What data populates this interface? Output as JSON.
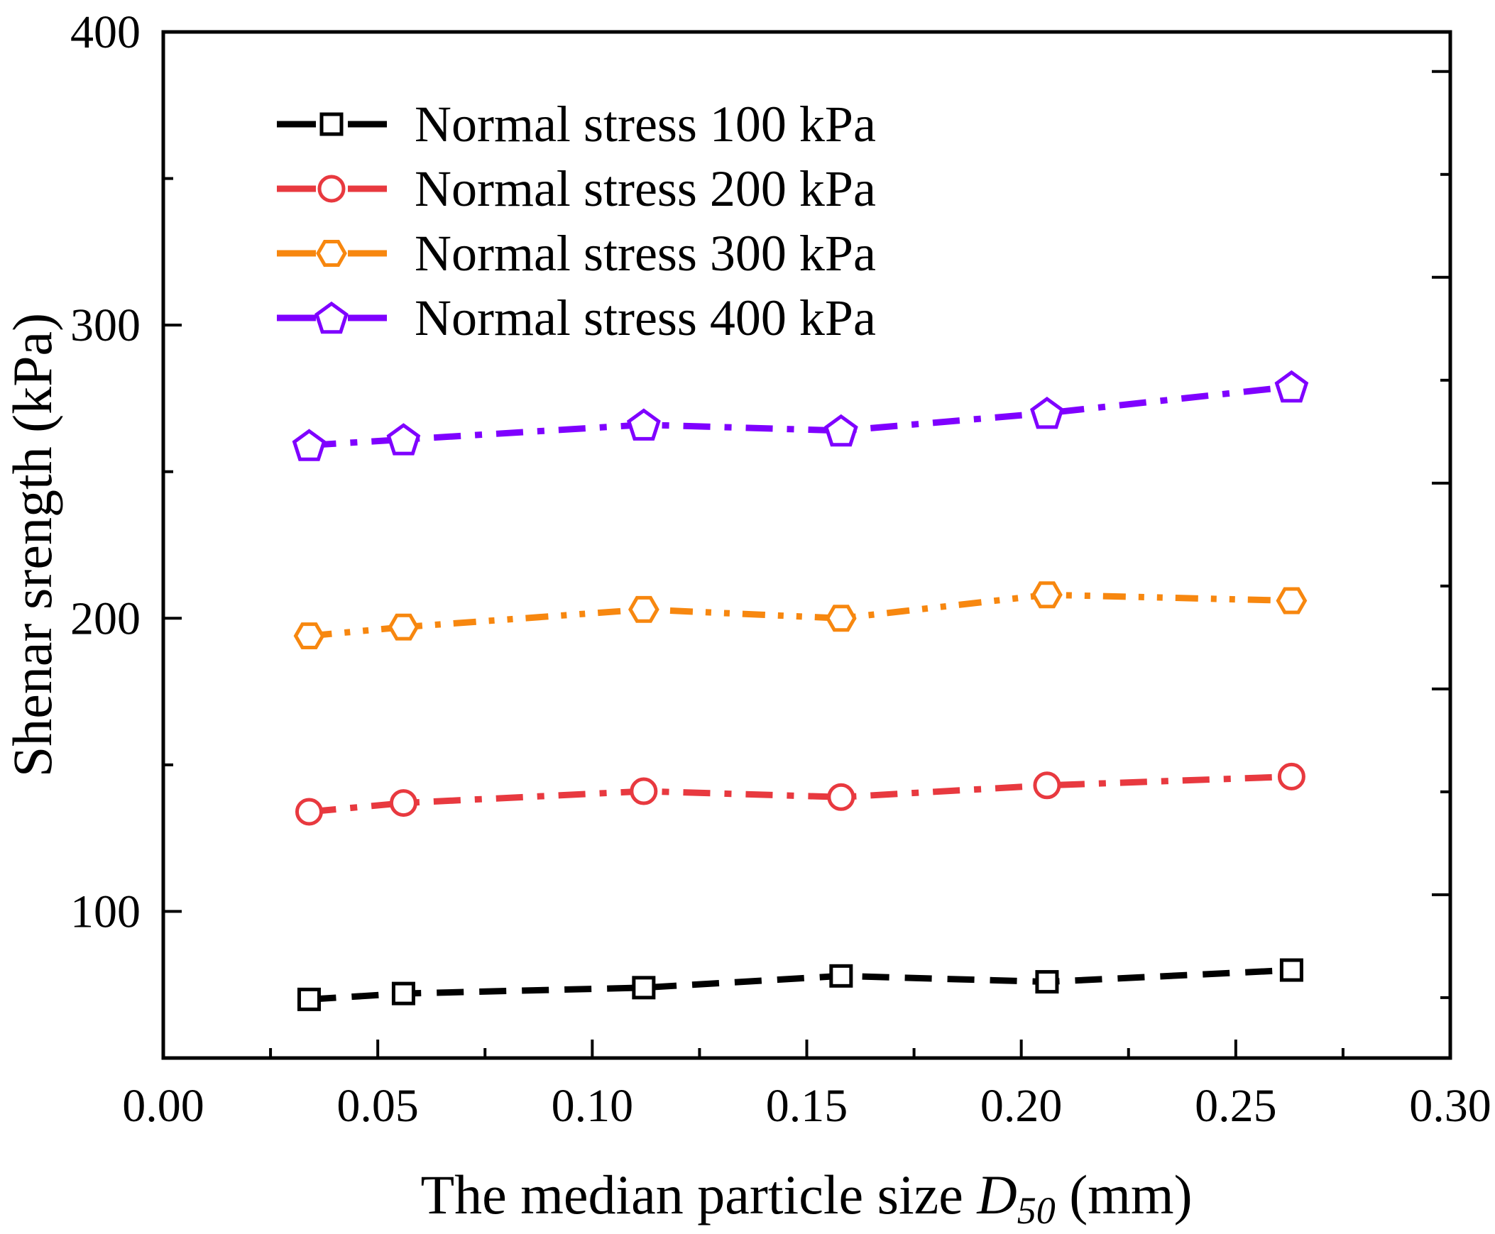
{
  "chart_data": {
    "type": "line",
    "title": "",
    "xlabel": {
      "prefix": "The median particle size ",
      "symbol": "D",
      "subscript": "50",
      "suffix": " (mm)"
    },
    "ylabel": "Shenar srength (kPa)",
    "xlim": [
      0.0,
      0.3
    ],
    "ylim": [
      50,
      400
    ],
    "x_major_ticks": [
      0.0,
      0.05,
      0.1,
      0.15,
      0.2,
      0.25,
      0.3
    ],
    "x_tick_labels": [
      "0.00",
      "0.05",
      "0.10",
      "0.15",
      "0.20",
      "0.25",
      "0.30"
    ],
    "y_major_ticks": [
      100,
      200,
      300,
      400
    ],
    "y_tick_labels": [
      "100",
      "200",
      "300",
      "400"
    ],
    "grid": false,
    "legend_position": "top-left",
    "x": [
      0.034,
      0.056,
      0.112,
      0.158,
      0.206,
      0.263
    ],
    "series": [
      {
        "name": "Normal stress 100 kPa",
        "values": [
          70,
          72,
          74,
          78,
          76,
          80
        ],
        "color": "#000000",
        "marker": "square",
        "dash": "dash"
      },
      {
        "name": "Normal stress 200 kPa",
        "values": [
          134,
          137,
          141,
          139,
          143,
          146
        ],
        "color": "#e8393f",
        "marker": "circle",
        "dash": "dashdot"
      },
      {
        "name": "Normal stress 300 kPa",
        "values": [
          194,
          197,
          203,
          200,
          208,
          206
        ],
        "color": "#f7870f",
        "marker": "hexagon",
        "dash": "dashdotdot"
      },
      {
        "name": "Normal stress 400 kPa",
        "values": [
          259,
          261,
          266,
          264,
          270,
          279
        ],
        "color": "#7f00ff",
        "marker": "pentagon",
        "dash": "dashdot"
      }
    ]
  }
}
